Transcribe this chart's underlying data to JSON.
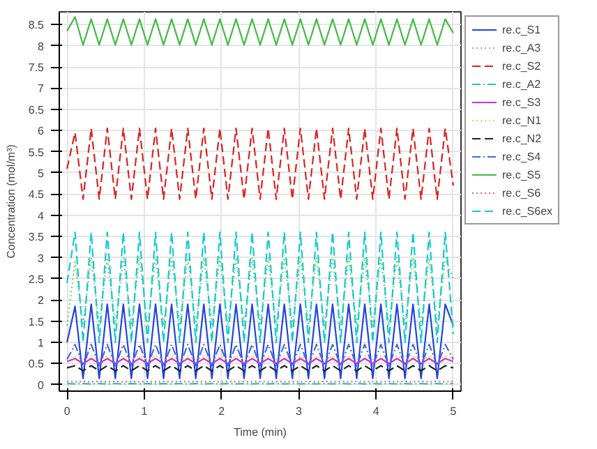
{
  "chart_data": {
    "type": "line",
    "xlabel": "Time (min)",
    "ylabel": "Concentration (mol/m³)",
    "x": [
      0,
      0.104,
      0.208,
      0.313,
      0.417,
      0.521,
      0.625,
      0.729,
      0.833,
      0.938,
      1.042,
      1.146,
      1.25,
      1.354,
      1.458,
      1.563,
      1.667,
      1.771,
      1.875,
      1.979,
      2.083,
      2.188,
      2.292,
      2.396,
      2.5,
      2.604,
      2.708,
      2.813,
      2.917,
      3.021,
      3.125,
      3.229,
      3.333,
      3.438,
      3.542,
      3.646,
      3.75,
      3.854,
      3.958,
      4.063,
      4.167,
      4.271,
      4.375,
      4.479,
      4.583,
      4.688,
      4.792,
      4.896,
      5.0
    ],
    "xlim": [
      -0.1,
      5.1
    ],
    "ylim": [
      -0.15,
      8.8
    ],
    "xticks": [
      0,
      1,
      2,
      3,
      4,
      5
    ],
    "yticks": [
      0,
      0.5,
      1,
      1.5,
      2,
      2.5,
      3,
      3.5,
      4,
      4.5,
      5,
      5.5,
      6,
      6.5,
      7,
      7.5,
      8,
      8.5
    ],
    "grid": true,
    "legend": "right",
    "series": [
      {
        "name": "re.c_S1",
        "color": "#2244dd",
        "line_style": "solid",
        "values": [
          1.0,
          1.85,
          0.15,
          1.9,
          0.15,
          1.9,
          0.15,
          1.9,
          0.15,
          1.9,
          0.15,
          1.9,
          0.15,
          1.9,
          0.15,
          1.9,
          0.15,
          1.9,
          0.15,
          1.9,
          0.15,
          1.9,
          0.15,
          1.9,
          0.15,
          1.9,
          0.15,
          1.9,
          0.15,
          1.9,
          0.15,
          1.9,
          0.15,
          1.9,
          0.15,
          1.9,
          0.15,
          1.9,
          0.15,
          1.9,
          0.15,
          1.9,
          0.15,
          1.9,
          0.15,
          1.9,
          0.15,
          1.9,
          1.4
        ]
      },
      {
        "name": "re.c_A3",
        "color": "#77cc77",
        "line_style": "dotted",
        "values": [
          1.4,
          2.9,
          1.4,
          3.0,
          1.4,
          3.0,
          1.4,
          3.0,
          1.4,
          3.0,
          1.4,
          3.0,
          1.4,
          3.0,
          1.4,
          3.0,
          1.4,
          3.0,
          1.4,
          3.0,
          1.4,
          3.0,
          1.4,
          3.0,
          1.4,
          3.0,
          1.4,
          3.0,
          1.4,
          3.0,
          1.4,
          3.0,
          1.4,
          3.0,
          1.4,
          3.0,
          1.4,
          3.0,
          1.4,
          3.0,
          1.4,
          3.0,
          1.4,
          3.0,
          1.4,
          3.0,
          1.4,
          3.0,
          2.5
        ]
      },
      {
        "name": "re.c_S2",
        "color": "#dd2222",
        "line_style": "dashed",
        "values": [
          5.1,
          5.95,
          4.38,
          6.05,
          4.38,
          6.05,
          4.38,
          6.05,
          4.38,
          6.05,
          4.38,
          6.05,
          4.38,
          6.05,
          4.38,
          6.05,
          4.38,
          6.05,
          4.38,
          6.05,
          4.38,
          6.05,
          4.38,
          6.05,
          4.38,
          6.05,
          4.38,
          6.05,
          4.38,
          6.05,
          4.38,
          6.05,
          4.38,
          6.05,
          4.38,
          6.05,
          4.38,
          6.05,
          4.38,
          6.05,
          4.38,
          6.05,
          4.38,
          6.05,
          4.38,
          6.05,
          4.38,
          6.05,
          4.7
        ]
      },
      {
        "name": "re.c_A2",
        "color": "#33bbcc",
        "line_style": "dashdot",
        "values": [
          0.03,
          0.02,
          0.03,
          0.02,
          0.03,
          0.02,
          0.03,
          0.02,
          0.03,
          0.02,
          0.03,
          0.02,
          0.03,
          0.02,
          0.03,
          0.02,
          0.03,
          0.02,
          0.03,
          0.02,
          0.03,
          0.02,
          0.03,
          0.02,
          0.03,
          0.02,
          0.03,
          0.02,
          0.03,
          0.02,
          0.03,
          0.02,
          0.03,
          0.02,
          0.03,
          0.02,
          0.03,
          0.02,
          0.03,
          0.02,
          0.03,
          0.02,
          0.03,
          0.02,
          0.03,
          0.02,
          0.03,
          0.02,
          0.03
        ]
      },
      {
        "name": "re.c_S3",
        "color": "#cc33cc",
        "line_style": "solid",
        "values": [
          0.55,
          0.62,
          0.5,
          0.62,
          0.5,
          0.62,
          0.5,
          0.62,
          0.5,
          0.62,
          0.5,
          0.62,
          0.5,
          0.62,
          0.5,
          0.62,
          0.5,
          0.62,
          0.5,
          0.62,
          0.5,
          0.62,
          0.5,
          0.62,
          0.5,
          0.62,
          0.5,
          0.62,
          0.5,
          0.62,
          0.5,
          0.62,
          0.5,
          0.62,
          0.5,
          0.62,
          0.5,
          0.62,
          0.5,
          0.62,
          0.5,
          0.62,
          0.5,
          0.62,
          0.5,
          0.62,
          0.5,
          0.62,
          0.55
        ]
      },
      {
        "name": "re.c_N1",
        "color": "#ffcc44",
        "line_style": "dotted",
        "values": [
          0.64,
          0.68,
          0.6,
          0.68,
          0.6,
          0.68,
          0.6,
          0.68,
          0.6,
          0.68,
          0.6,
          0.68,
          0.6,
          0.68,
          0.6,
          0.68,
          0.6,
          0.68,
          0.6,
          0.68,
          0.6,
          0.68,
          0.6,
          0.68,
          0.6,
          0.68,
          0.6,
          0.68,
          0.6,
          0.68,
          0.6,
          0.68,
          0.6,
          0.68,
          0.6,
          0.68,
          0.6,
          0.68,
          0.6,
          0.68,
          0.6,
          0.68,
          0.6,
          0.68,
          0.6,
          0.68,
          0.6,
          0.68,
          0.64
        ]
      },
      {
        "name": "re.c_N2",
        "color": "#222222",
        "line_style": "dashed",
        "values": [
          0.4,
          0.45,
          0.33,
          0.45,
          0.33,
          0.45,
          0.33,
          0.45,
          0.33,
          0.45,
          0.33,
          0.45,
          0.33,
          0.45,
          0.33,
          0.45,
          0.33,
          0.45,
          0.33,
          0.45,
          0.33,
          0.45,
          0.33,
          0.45,
          0.33,
          0.45,
          0.33,
          0.45,
          0.33,
          0.45,
          0.33,
          0.45,
          0.33,
          0.45,
          0.33,
          0.45,
          0.33,
          0.45,
          0.33,
          0.45,
          0.33,
          0.45,
          0.33,
          0.45,
          0.33,
          0.45,
          0.33,
          0.45,
          0.4
        ]
      },
      {
        "name": "re.c_S4",
        "color": "#4466ee",
        "line_style": "dashdot",
        "values": [
          0.6,
          0.95,
          0.45,
          0.95,
          0.45,
          0.95,
          0.45,
          0.95,
          0.45,
          0.95,
          0.45,
          0.95,
          0.45,
          0.95,
          0.45,
          0.95,
          0.45,
          0.95,
          0.45,
          0.95,
          0.45,
          0.95,
          0.45,
          0.95,
          0.45,
          0.95,
          0.45,
          0.95,
          0.45,
          0.95,
          0.45,
          0.95,
          0.45,
          0.95,
          0.45,
          0.95,
          0.45,
          0.95,
          0.45,
          0.95,
          0.45,
          0.95,
          0.45,
          0.95,
          0.45,
          0.95,
          0.45,
          0.95,
          0.6
        ]
      },
      {
        "name": "re.c_S5",
        "color": "#44bb44",
        "line_style": "solid",
        "values": [
          8.35,
          8.68,
          8.02,
          8.63,
          8.02,
          8.63,
          8.02,
          8.63,
          8.02,
          8.63,
          8.02,
          8.63,
          8.02,
          8.63,
          8.02,
          8.63,
          8.02,
          8.63,
          8.02,
          8.63,
          8.02,
          8.63,
          8.02,
          8.63,
          8.02,
          8.63,
          8.02,
          8.63,
          8.02,
          8.63,
          8.02,
          8.63,
          8.02,
          8.63,
          8.02,
          8.63,
          8.02,
          8.63,
          8.02,
          8.63,
          8.02,
          8.63,
          8.02,
          8.63,
          8.02,
          8.63,
          8.02,
          8.63,
          8.3
        ]
      },
      {
        "name": "re.c_S6",
        "color": "#dd6666",
        "line_style": "dotted",
        "values": [
          0.08,
          0.07,
          0.08,
          0.07,
          0.08,
          0.07,
          0.08,
          0.07,
          0.08,
          0.07,
          0.08,
          0.07,
          0.08,
          0.07,
          0.08,
          0.07,
          0.08,
          0.07,
          0.08,
          0.07,
          0.08,
          0.07,
          0.08,
          0.07,
          0.08,
          0.07,
          0.08,
          0.07,
          0.08,
          0.07,
          0.08,
          0.07,
          0.08,
          0.07,
          0.08,
          0.07,
          0.08,
          0.07,
          0.08,
          0.07,
          0.08,
          0.07,
          0.08,
          0.07,
          0.08,
          0.07,
          0.08,
          0.07,
          0.08
        ]
      },
      {
        "name": "re.c_S6ex",
        "color": "#11cccc",
        "line_style": "dashed",
        "values": [
          2.4,
          3.6,
          1.0,
          3.6,
          1.0,
          3.6,
          1.0,
          3.6,
          1.0,
          3.6,
          1.0,
          3.6,
          1.0,
          3.6,
          1.0,
          3.6,
          1.0,
          3.6,
          1.0,
          3.6,
          1.0,
          3.6,
          1.0,
          3.6,
          1.0,
          3.6,
          1.0,
          3.6,
          1.0,
          3.6,
          1.0,
          3.6,
          1.0,
          3.6,
          1.0,
          3.6,
          1.0,
          3.6,
          1.0,
          3.6,
          1.0,
          3.6,
          1.0,
          3.6,
          1.0,
          3.6,
          1.0,
          3.6,
          1.2
        ]
      }
    ]
  }
}
